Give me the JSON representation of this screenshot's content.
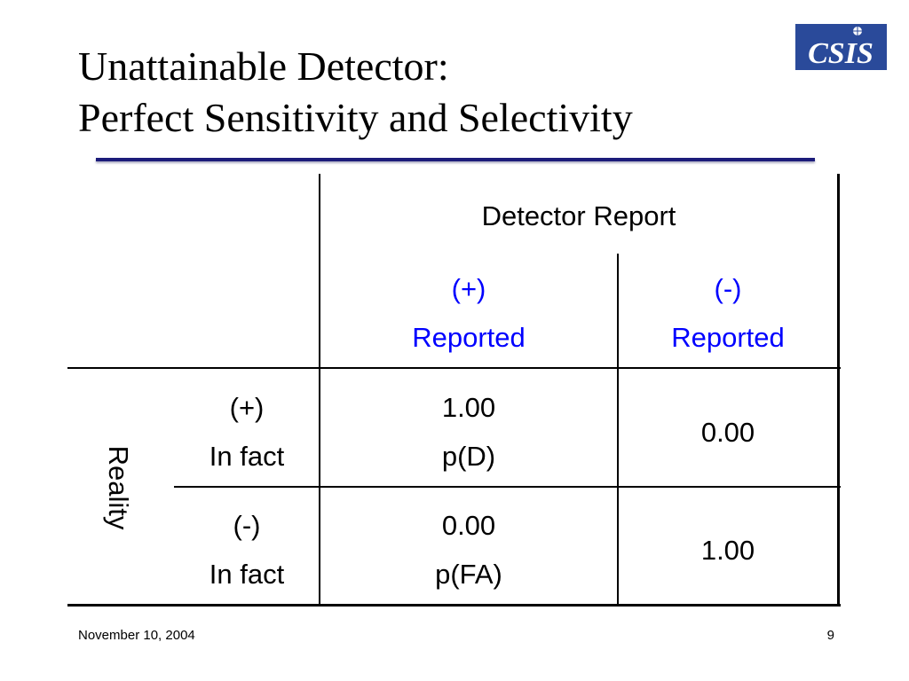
{
  "slide": {
    "title_line1": "Unattainable Detector:",
    "title_line2": "Perfect Sensitivity and Selectivity",
    "logo_text": "CSIS"
  },
  "table": {
    "header": "Detector Report",
    "col_pos_sign": "(+)",
    "col_pos_label": "Reported",
    "col_neg_sign": "(-)",
    "col_neg_label": "Reported",
    "row_group_label": "Reality",
    "row_pos_sign": "(+)",
    "row_pos_label": "In fact",
    "row_neg_sign": "(-)",
    "row_neg_label": "In fact",
    "pos_pos_value": "1.00",
    "pos_pos_note": "p(D)",
    "pos_neg_value": "0.00",
    "neg_pos_value": "0.00",
    "neg_pos_note": "p(FA)",
    "neg_neg_value": "1.00"
  },
  "footer": {
    "date": "November 10, 2004",
    "page_number": "9"
  },
  "colors": {
    "accent_text": "#0000ff",
    "rule": "#1c1c7a",
    "logo_bg": "#2a4a9a"
  }
}
